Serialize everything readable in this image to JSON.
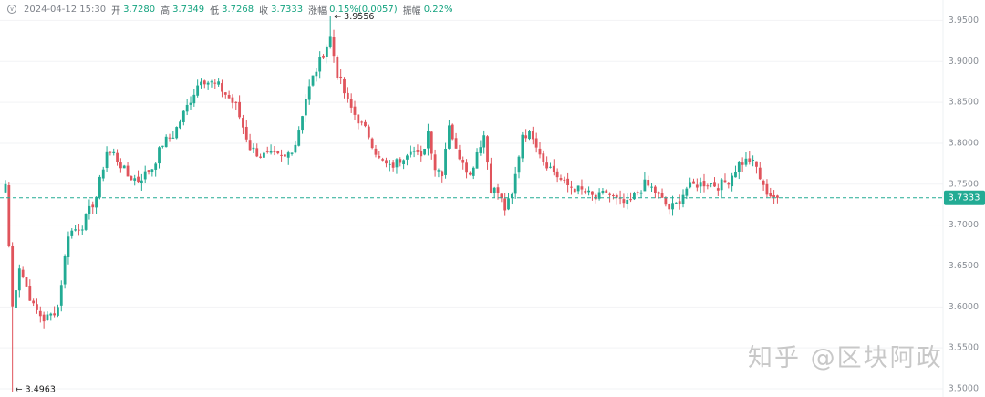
{
  "header": {
    "timestamp": "2024-04-12 15:30",
    "open_label": "开",
    "open": "3.7280",
    "high_label": "高",
    "high": "3.7349",
    "low_label": "低",
    "low": "3.7268",
    "close_label": "收",
    "close": "3.7333",
    "change_label": "涨幅",
    "change": "0.15%(0.0057)",
    "amplitude_label": "振幅",
    "amplitude": "0.22%"
  },
  "watermark": "知乎 @区块阿政",
  "colors": {
    "up": "#22ab94",
    "down": "#e0545c",
    "price_line": "#22ab94",
    "grid": "#f2f3f5",
    "axis_text": "#8a8f96"
  },
  "chart_data": {
    "type": "candlestick",
    "y_ticks": [
      "3.9500",
      "3.9000",
      "3.8500",
      "3.8000",
      "3.7500",
      "3.7000",
      "3.6500",
      "3.6000",
      "3.5500",
      "3.5000"
    ],
    "ylim": [
      3.49,
      3.975
    ],
    "current_price": "3.7333",
    "annotations": {
      "max": "← 3.9556",
      "min": "← 3.4963"
    },
    "max_value": 3.9556,
    "min_value": 3.4963,
    "anchors": [
      [
        0,
        3.75
      ],
      [
        2,
        3.6
      ],
      [
        4,
        3.65
      ],
      [
        8,
        3.6
      ],
      [
        11,
        3.585
      ],
      [
        13,
        3.59
      ],
      [
        15,
        3.6
      ],
      [
        18,
        3.69
      ],
      [
        22,
        3.7
      ],
      [
        26,
        3.735
      ],
      [
        29,
        3.79
      ],
      [
        31,
        3.787
      ],
      [
        35,
        3.76
      ],
      [
        38,
        3.755
      ],
      [
        42,
        3.77
      ],
      [
        45,
        3.8
      ],
      [
        48,
        3.81
      ],
      [
        52,
        3.845
      ],
      [
        56,
        3.88
      ],
      [
        58,
        3.875
      ],
      [
        61,
        3.87
      ],
      [
        64,
        3.855
      ],
      [
        66,
        3.845
      ],
      [
        70,
        3.795
      ],
      [
        73,
        3.785
      ],
      [
        75,
        3.785
      ],
      [
        80,
        3.782
      ],
      [
        83,
        3.8
      ],
      [
        86,
        3.855
      ],
      [
        88,
        3.88
      ],
      [
        91,
        3.91
      ],
      [
        93,
        3.93
      ],
      [
        95,
        3.885
      ],
      [
        98,
        3.85
      ],
      [
        100,
        3.835
      ],
      [
        104,
        3.81
      ],
      [
        107,
        3.78
      ],
      [
        110,
        3.77
      ],
      [
        113,
        3.78
      ],
      [
        116,
        3.795
      ],
      [
        119,
        3.78
      ],
      [
        121,
        3.815
      ],
      [
        123,
        3.77
      ],
      [
        125,
        3.765
      ],
      [
        127,
        3.825
      ],
      [
        129,
        3.79
      ],
      [
        131,
        3.78
      ],
      [
        133,
        3.76
      ],
      [
        135,
        3.79
      ],
      [
        137,
        3.81
      ],
      [
        139,
        3.745
      ],
      [
        141,
        3.74
      ],
      [
        143,
        3.72
      ],
      [
        145,
        3.735
      ],
      [
        148,
        3.812
      ],
      [
        151,
        3.81
      ],
      [
        154,
        3.78
      ],
      [
        157,
        3.765
      ],
      [
        160,
        3.75
      ],
      [
        163,
        3.745
      ],
      [
        166,
        3.74
      ],
      [
        169,
        3.732
      ],
      [
        172,
        3.74
      ],
      [
        175,
        3.73
      ],
      [
        178,
        3.725
      ],
      [
        181,
        3.74
      ],
      [
        183,
        3.75
      ],
      [
        185,
        3.745
      ],
      [
        188,
        3.73
      ],
      [
        190,
        3.72
      ],
      [
        192,
        3.725
      ],
      [
        195,
        3.745
      ],
      [
        198,
        3.75
      ],
      [
        201,
        3.752
      ],
      [
        204,
        3.748
      ],
      [
        207,
        3.755
      ],
      [
        210,
        3.775
      ],
      [
        213,
        3.78
      ],
      [
        215,
        3.77
      ],
      [
        217,
        3.745
      ],
      [
        219,
        3.737
      ],
      [
        221,
        3.7333
      ]
    ]
  }
}
